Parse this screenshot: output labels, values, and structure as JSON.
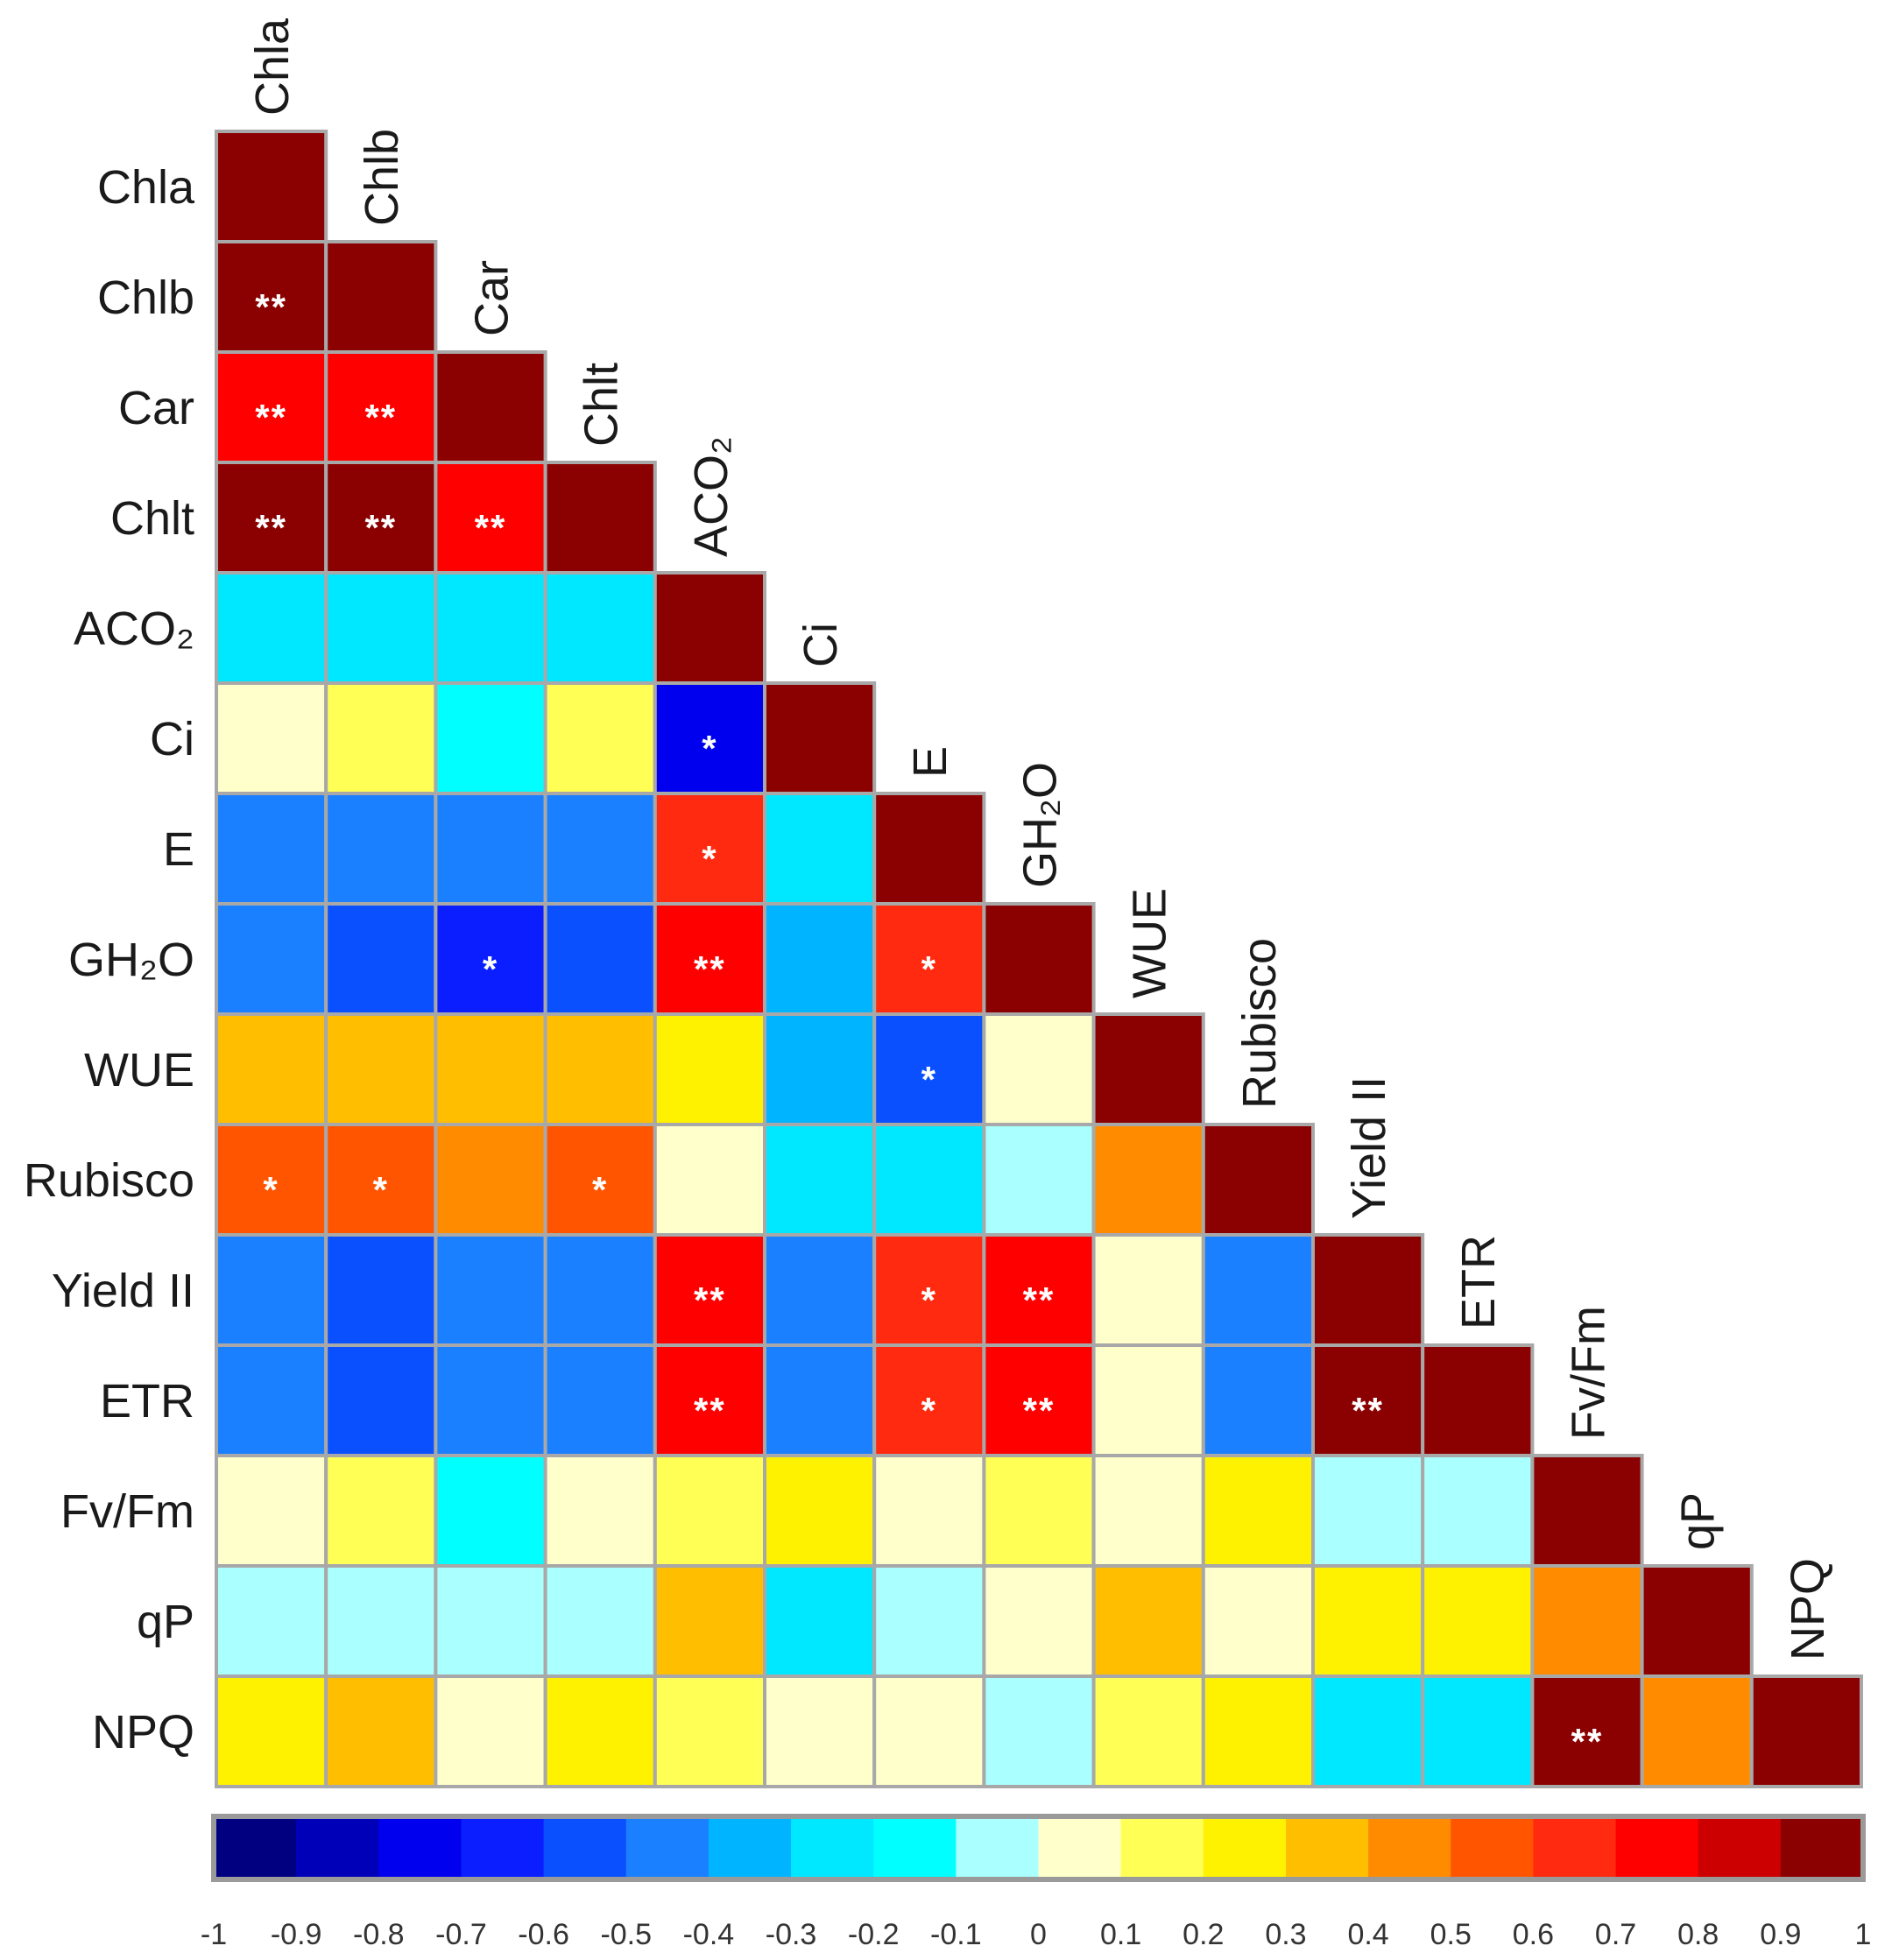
{
  "chart_data": {
    "type": "heatmap",
    "variables": [
      "Chla",
      "Chlb",
      "Car",
      "Chlt",
      "ACO₂",
      "Ci",
      "E",
      "GH₂O",
      "WUE",
      "Rubisco",
      "Yield II",
      "ETR",
      "Fv/Fm",
      "qP",
      "NPQ"
    ],
    "values": [
      [
        1
      ],
      [
        0.95,
        1
      ],
      [
        0.75,
        0.75,
        1
      ],
      [
        0.95,
        0.95,
        0.75,
        1
      ],
      [
        -0.25,
        -0.25,
        -0.25,
        -0.25,
        1
      ],
      [
        0.05,
        0.15,
        -0.15,
        0.15,
        -0.72,
        1
      ],
      [
        -0.45,
        -0.45,
        -0.45,
        -0.45,
        0.66,
        -0.25,
        1
      ],
      [
        -0.45,
        -0.55,
        -0.65,
        -0.55,
        0.72,
        -0.35,
        0.66,
        1
      ],
      [
        0.35,
        0.35,
        0.35,
        0.35,
        0.22,
        -0.35,
        -0.58,
        0.05,
        1
      ],
      [
        0.55,
        0.55,
        0.45,
        0.55,
        0.05,
        -0.25,
        -0.25,
        -0.05,
        0.45,
        1
      ],
      [
        -0.45,
        -0.55,
        -0.45,
        -0.45,
        0.75,
        -0.45,
        0.66,
        0.75,
        0.05,
        -0.45,
        1
      ],
      [
        -0.45,
        -0.55,
        -0.45,
        -0.45,
        0.75,
        -0.45,
        0.66,
        0.75,
        0.05,
        -0.45,
        0.95,
        1
      ],
      [
        0.05,
        0.15,
        -0.15,
        0.05,
        0.15,
        0.25,
        0.05,
        0.15,
        0.05,
        0.25,
        -0.05,
        -0.05,
        1
      ],
      [
        -0.05,
        -0.05,
        -0.05,
        -0.05,
        0.35,
        -0.25,
        -0.05,
        0.05,
        0.35,
        0.05,
        0.25,
        0.25,
        0.45,
        1
      ],
      [
        0.22,
        0.35,
        0.05,
        0.22,
        0.15,
        0.05,
        0.05,
        -0.05,
        0.15,
        0.25,
        -0.25,
        -0.25,
        0.95,
        0.45,
        1
      ]
    ],
    "significance": [
      [
        ""
      ],
      [
        "**",
        ""
      ],
      [
        "**",
        "**",
        ""
      ],
      [
        "**",
        "**",
        "**",
        ""
      ],
      [
        "",
        "",
        "",
        "",
        ""
      ],
      [
        "",
        "",
        "",
        "",
        "*",
        ""
      ],
      [
        "",
        "",
        "",
        "",
        "*",
        "",
        ""
      ],
      [
        "",
        "",
        "*",
        "",
        "**",
        "",
        "*",
        ""
      ],
      [
        "",
        "",
        "",
        "",
        "",
        "",
        "*",
        "",
        ""
      ],
      [
        "*",
        "*",
        "",
        "*",
        "",
        "",
        "",
        "",
        "",
        ""
      ],
      [
        "",
        "",
        "",
        "",
        "**",
        "",
        "*",
        "**",
        "",
        "",
        ""
      ],
      [
        "",
        "",
        "",
        "",
        "**",
        "",
        "*",
        "**",
        "",
        "",
        "**",
        ""
      ],
      [
        "",
        "",
        "",
        "",
        "",
        "",
        "",
        "",
        "",
        "",
        "",
        "",
        ""
      ],
      [
        "",
        "",
        "",
        "",
        "",
        "",
        "",
        "",
        "",
        "",
        "",
        "",
        "",
        ""
      ],
      [
        "",
        "",
        "",
        "",
        "",
        "",
        "",
        "",
        "",
        "",
        "",
        "",
        "**",
        "",
        ""
      ]
    ],
    "colorbar": {
      "min": -1,
      "max": 1,
      "step": 0.1,
      "colors": [
        "#000080",
        "#0000B8",
        "#0000EE",
        "#0A1EFF",
        "#0A50FF",
        "#1A80FF",
        "#00B4FF",
        "#00E8FF",
        "#00FFFF",
        "#AAFFFF",
        "#FFFFCC",
        "#FFFF55",
        "#FFF200",
        "#FFBF00",
        "#FF8C00",
        "#FF5500",
        "#FF2A10",
        "#FF0000",
        "#CC0000",
        "#8B0000"
      ],
      "tick_labels": [
        "-1",
        "-0.9",
        "-0.8",
        "-0.7",
        "-0.6",
        "-0.5",
        "-0.4",
        "-0.3",
        "-0.2",
        "-0.1",
        "0",
        "0.1",
        "0.2",
        "0.3",
        "0.4",
        "0.5",
        "0.6",
        "0.7",
        "0.8",
        "0.9",
        "1"
      ]
    }
  }
}
